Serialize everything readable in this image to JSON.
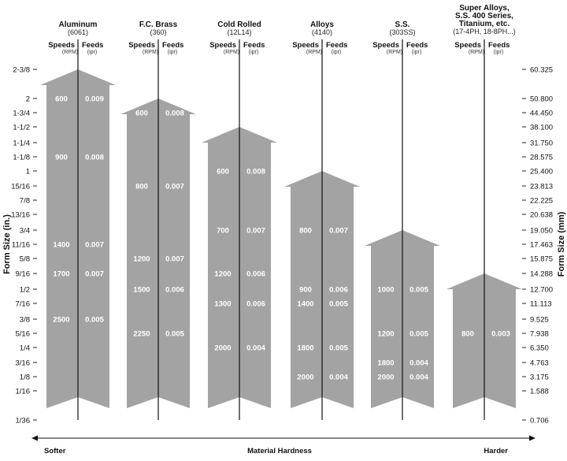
{
  "chart_data": {
    "type": "arrow-range-chart",
    "colors": {
      "arrow": "#a3a3a3",
      "line": "#111111",
      "value_text": "#ffffff"
    },
    "left_axis": {
      "title": "Form Size (in.)",
      "ticks": [
        "2-3/8",
        "2",
        "1-3/4",
        "1-1/2",
        "1-1/4",
        "1-1/8",
        "1",
        "15/16",
        "7/8",
        "13/16",
        "3/4",
        "11/16",
        "5/8",
        "9/16",
        "1/2",
        "7/16",
        "3/8",
        "5/16",
        "1/4",
        "3/16",
        "1/8",
        "1/16",
        "1/36"
      ]
    },
    "right_axis": {
      "title": "Form Size (mm)",
      "ticks": [
        "60.325",
        "50.800",
        "44.450",
        "38.100",
        "31.750",
        "28.575",
        "25.400",
        "23.813",
        "22.225",
        "20.638",
        "19.050",
        "17.463",
        "15.875",
        "14.288",
        "12.700",
        "11.113",
        "9.525",
        "7.938",
        "6.350",
        "4.763",
        "3.175",
        "1.588",
        "0.706"
      ]
    },
    "column_headers": {
      "speeds": "Speeds",
      "speeds_unit": "(RPM)",
      "feeds": "Feeds",
      "feeds_unit": "(ipr)"
    },
    "materials": [
      {
        "name": [
          "Aluminum"
        ],
        "sub": [
          "(6061)"
        ],
        "top": "2-3/8",
        "rows": [
          {
            "size": "2",
            "speed": "600",
            "feed": "0.009"
          },
          {
            "size": "1-1/8",
            "speed": "900",
            "feed": "0.008"
          },
          {
            "size": "11/16",
            "speed": "1400",
            "feed": "0.007"
          },
          {
            "size": "9/16",
            "speed": "1700",
            "feed": "0.007"
          },
          {
            "size": "3/8",
            "speed": "2500",
            "feed": "0.005"
          }
        ]
      },
      {
        "name": [
          "F.C. Brass"
        ],
        "sub": [
          "(360)"
        ],
        "top": "2",
        "rows": [
          {
            "size": "1-3/4",
            "speed": "600",
            "feed": "0.008"
          },
          {
            "size": "15/16",
            "speed": "800",
            "feed": "0.007"
          },
          {
            "size": "5/8",
            "speed": "1200",
            "feed": "0.007"
          },
          {
            "size": "1/2",
            "speed": "1500",
            "feed": "0.006"
          },
          {
            "size": "5/16",
            "speed": "2250",
            "feed": "0.005"
          }
        ]
      },
      {
        "name": [
          "Cold Rolled"
        ],
        "sub": [
          "(12L14)"
        ],
        "top": "1-1/2",
        "rows": [
          {
            "size": "1",
            "speed": "600",
            "feed": "0.008"
          },
          {
            "size": "3/4",
            "speed": "700",
            "feed": "0.007"
          },
          {
            "size": "9/16",
            "speed": "1200",
            "feed": "0.006"
          },
          {
            "size": "7/16",
            "speed": "1300",
            "feed": "0.006"
          },
          {
            "size": "1/4",
            "speed": "2000",
            "feed": "0.004"
          }
        ]
      },
      {
        "name": [
          "Alloys"
        ],
        "sub": [
          "(4140)"
        ],
        "top": "1",
        "rows": [
          {
            "size": "3/4",
            "speed": "800",
            "feed": "0.007"
          },
          {
            "size": "1/2",
            "speed": "900",
            "feed": "0.006"
          },
          {
            "size": "7/16",
            "speed": "1400",
            "feed": "0.005"
          },
          {
            "size": "1/4",
            "speed": "1800",
            "feed": "0.005"
          },
          {
            "size": "1/8",
            "speed": "2000",
            "feed": "0.004"
          }
        ]
      },
      {
        "name": [
          "S.S."
        ],
        "sub": [
          "(303SS)"
        ],
        "top": "3/4",
        "rows": [
          {
            "size": "1/2",
            "speed": "1000",
            "feed": "0.005"
          },
          {
            "size": "5/16",
            "speed": "1200",
            "feed": "0.005"
          },
          {
            "size": "3/16",
            "speed": "1800",
            "feed": "0.004"
          },
          {
            "size": "1/8",
            "speed": "2000",
            "feed": "0.004"
          }
        ]
      },
      {
        "name": [
          "Super Alloys,",
          "S.S. 400 Series,",
          "Titanium, etc."
        ],
        "sub": [
          "(17-4PH, 18-8PH...)"
        ],
        "top": "9/16",
        "rows": [
          {
            "size": "5/16",
            "speed": "800",
            "feed": "0.003"
          }
        ]
      }
    ],
    "bottom_axis": {
      "left": "Softer",
      "center": "Material Hardness",
      "right": "Harder"
    }
  }
}
